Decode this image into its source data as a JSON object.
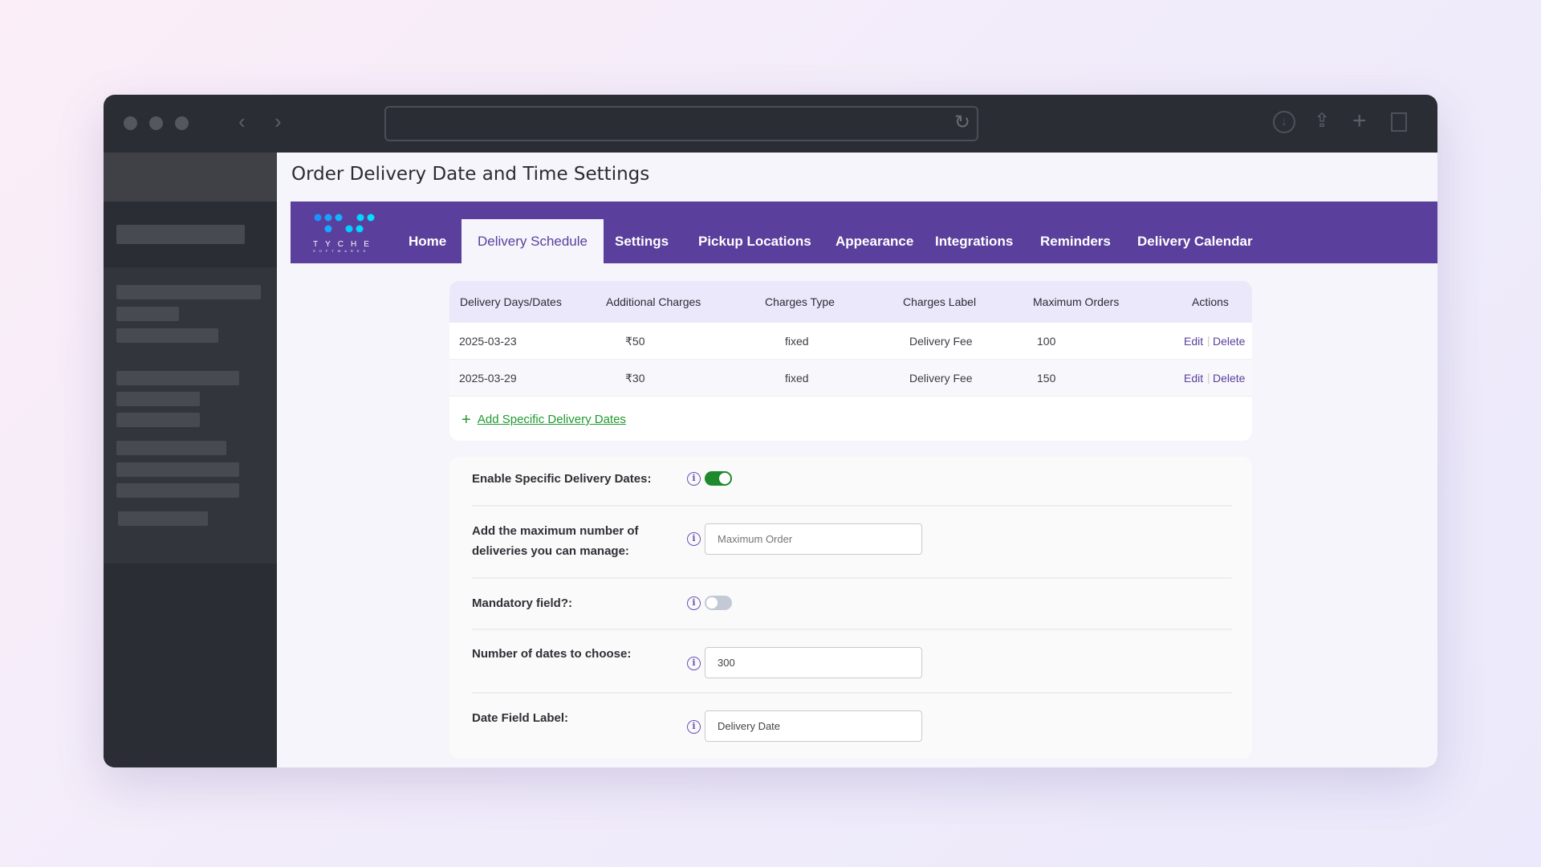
{
  "page_title": "Order Delivery Date and Time Settings",
  "logo": {
    "text": "TYCHE",
    "subtext": "SOFTWARES"
  },
  "nav": {
    "tabs": [
      {
        "label": "Home"
      },
      {
        "label": "Delivery Schedule",
        "active": true
      },
      {
        "label": "Settings"
      },
      {
        "label": "Pickup Locations"
      },
      {
        "label": "Appearance"
      },
      {
        "label": "Integrations"
      },
      {
        "label": "Reminders"
      },
      {
        "label": "Delivery Calendar"
      }
    ]
  },
  "table": {
    "headers": [
      "Delivery Days/Dates",
      "Additional Charges",
      "Charges Type",
      "Charges Label",
      "Maximum Orders",
      "Actions"
    ],
    "rows": [
      {
        "date": "2025-03-23",
        "charge": "₹50",
        "type": "fixed",
        "label": "Delivery Fee",
        "max": "100",
        "edit": "Edit",
        "delete": "Delete"
      },
      {
        "date": "2025-03-29",
        "charge": "₹30",
        "type": "fixed",
        "label": "Delivery Fee",
        "max": "150",
        "edit": "Edit",
        "delete": "Delete"
      }
    ],
    "add_link": "Add Specific Delivery Dates"
  },
  "settings": {
    "enable": {
      "label": "Enable Specific Delivery Dates:",
      "on": true
    },
    "max_deliveries": {
      "label1": "Add the maximum number of",
      "label2": "deliveries you can manage:",
      "placeholder": "Maximum Order"
    },
    "mandatory": {
      "label": "Mandatory field?:",
      "on": false
    },
    "num_dates": {
      "label": "Number of dates to choose:",
      "value": "300"
    },
    "date_label": {
      "label": "Date Field Label:",
      "value": "Delivery Date"
    }
  },
  "colors": {
    "accent": "#5a3f9c",
    "link_green": "#1f9a2e",
    "toggle_on": "#1f8a2c"
  }
}
